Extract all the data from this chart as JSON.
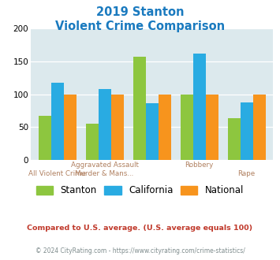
{
  "title_line1": "2019 Stanton",
  "title_line2": "Violent Crime Comparison",
  "stanton": [
    67,
    55,
    157,
    100,
    63
  ],
  "california": [
    118,
    108,
    86,
    162,
    87
  ],
  "national": [
    100,
    100,
    100,
    100,
    100
  ],
  "top_labels": [
    "",
    "Aggravated Assault",
    "",
    "Robbery",
    ""
  ],
  "bot_labels": [
    "All Violent Crime",
    "Murder & Mans...",
    "",
    "",
    "Rape"
  ],
  "color_stanton": "#8dc63f",
  "color_california": "#29abe2",
  "color_national": "#f7941d",
  "background_color": "#dce9ed",
  "ylim": [
    0,
    200
  ],
  "yticks": [
    0,
    50,
    100,
    150,
    200
  ],
  "footnote1": "Compared to U.S. average. (U.S. average equals 100)",
  "footnote2": "© 2024 CityRating.com - https://www.cityrating.com/crime-statistics/",
  "title_color": "#1a7abf",
  "footnote1_color": "#c0392b",
  "footnote2_color": "#7f8c8d",
  "label_color": "#b08060"
}
